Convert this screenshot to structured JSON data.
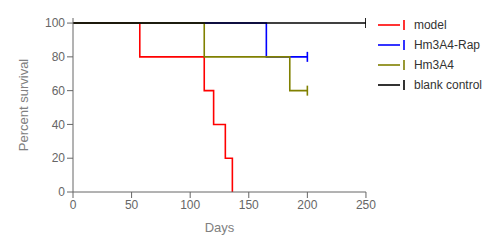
{
  "chart_data": {
    "type": "line",
    "xlabel": "Days",
    "ylabel": "Percent survival",
    "xlim": [
      0,
      250
    ],
    "ylim": [
      0,
      103
    ],
    "xticks": [
      0,
      50,
      100,
      150,
      200,
      250
    ],
    "yticks": [
      0,
      20,
      40,
      60,
      80,
      100
    ],
    "legend": "right",
    "series": [
      {
        "name": "model",
        "color": "#FF0000",
        "x": [
          0,
          57,
          57,
          112,
          112,
          120,
          120,
          130,
          130,
          136,
          136
        ],
        "values": [
          100,
          100,
          80,
          80,
          60,
          60,
          40,
          40,
          20,
          20,
          0
        ],
        "censor_x": [],
        "censor_y": []
      },
      {
        "name": "Hm3A4-Rap",
        "color": "#0000FF",
        "x": [
          0,
          165,
          165,
          200
        ],
        "values": [
          100,
          100,
          80,
          80
        ],
        "censor_x": [
          200
        ],
        "censor_y": [
          80
        ]
      },
      {
        "name": "Hm3A4",
        "color": "#808000",
        "x": [
          0,
          112,
          112,
          185,
          185,
          200
        ],
        "values": [
          100,
          100,
          80,
          80,
          60,
          60
        ],
        "censor_x": [
          200
        ],
        "censor_y": [
          60
        ]
      },
      {
        "name": "blank control",
        "color": "#000000",
        "x": [
          0,
          250
        ],
        "values": [
          100,
          100
        ],
        "censor_x": [
          250
        ],
        "censor_y": [
          100
        ]
      }
    ]
  }
}
